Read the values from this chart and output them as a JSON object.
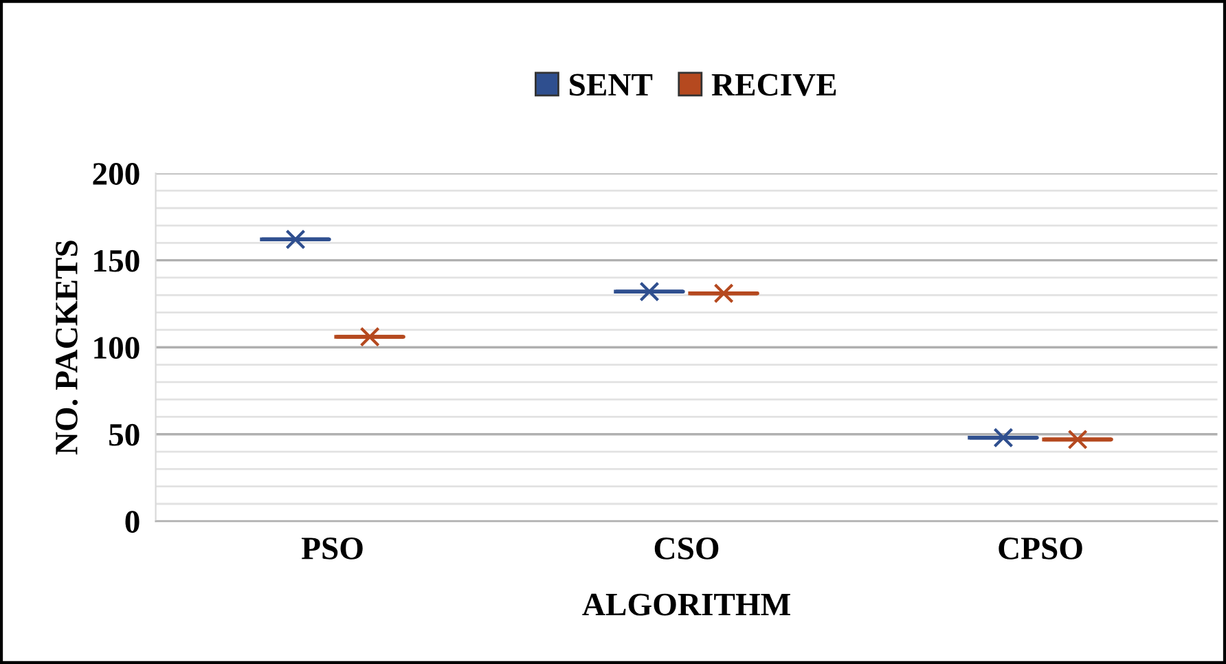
{
  "chart_data": {
    "type": "box",
    "xlabel": "ALGORITHM",
    "ylabel": "NO. PACKETS",
    "categories": [
      "PSO",
      "CSO",
      "CPSO"
    ],
    "series": [
      {
        "name": "SENT",
        "color": "#2f4f8f",
        "boxes": [
          {
            "low": 162,
            "q1": 162,
            "median": 162,
            "q3": 162,
            "high": 162,
            "mean": 162
          },
          {
            "low": 132,
            "q1": 132,
            "median": 132,
            "q3": 132,
            "high": 132,
            "mean": 132
          },
          {
            "low": 48,
            "q1": 48,
            "median": 48,
            "q3": 48,
            "high": 48,
            "mean": 48
          }
        ]
      },
      {
        "name": "RECIVE",
        "color": "#b5491f",
        "boxes": [
          {
            "low": 106,
            "q1": 106,
            "median": 106,
            "q3": 106,
            "high": 106,
            "mean": 106
          },
          {
            "low": 131,
            "q1": 131,
            "median": 131,
            "q3": 131,
            "high": 131,
            "mean": 131
          },
          {
            "low": 47,
            "q1": 47,
            "median": 47,
            "q3": 47,
            "high": 47,
            "mean": 47
          }
        ]
      }
    ],
    "ylim": [
      0,
      200
    ],
    "yticks": [
      0,
      {
        "value": 10,
        "label": null
      },
      {
        "value": 20,
        "label": null
      },
      {
        "value": 30,
        "label": null
      },
      {
        "value": 40,
        "label": null
      },
      50,
      {
        "value": 60,
        "label": null
      },
      {
        "value": 70,
        "label": null
      },
      {
        "value": 80,
        "label": null
      },
      {
        "value": 90,
        "label": null
      },
      100,
      {
        "value": 110,
        "label": null
      },
      {
        "value": 120,
        "label": null
      },
      {
        "value": 130,
        "label": null
      },
      {
        "value": 140,
        "label": null
      },
      150,
      {
        "value": 160,
        "label": null
      },
      {
        "value": 170,
        "label": null
      },
      {
        "value": 180,
        "label": null
      },
      {
        "value": 190,
        "label": null
      },
      200
    ],
    "grid": "y",
    "legend": "top",
    "marker": "cross"
  }
}
